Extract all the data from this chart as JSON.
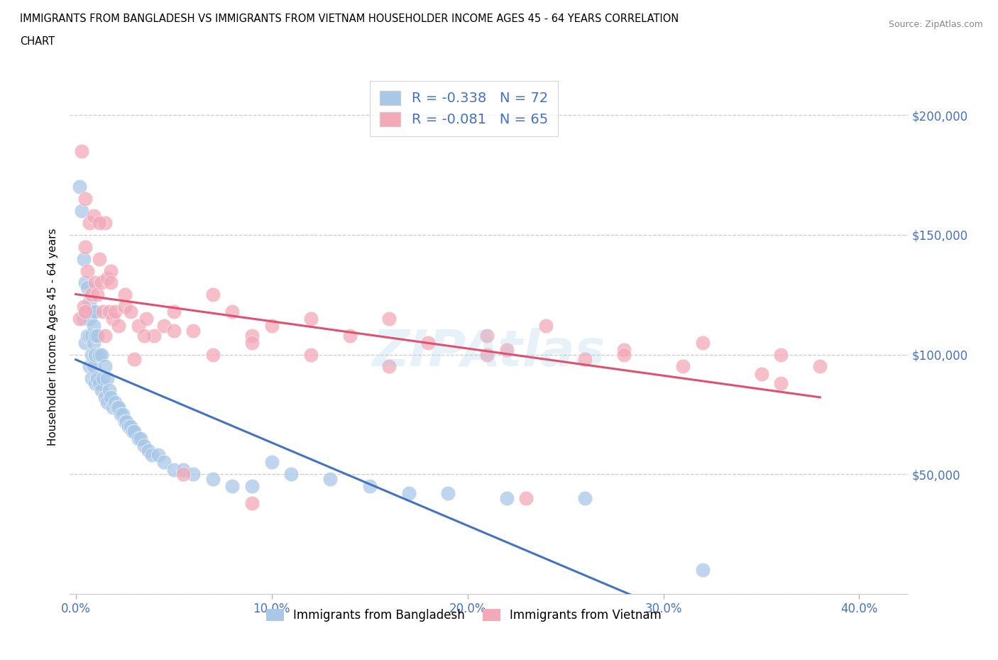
{
  "title_line1": "IMMIGRANTS FROM BANGLADESH VS IMMIGRANTS FROM VIETNAM HOUSEHOLDER INCOME AGES 45 - 64 YEARS CORRELATION",
  "title_line2": "CHART",
  "source": "Source: ZipAtlas.com",
  "ylabel": "Householder Income Ages 45 - 64 years",
  "xlabel_ticks": [
    "0.0%",
    "10.0%",
    "20.0%",
    "30.0%",
    "40.0%"
  ],
  "xlabel_vals": [
    0.0,
    0.1,
    0.2,
    0.3,
    0.4
  ],
  "ytick_vals": [
    0,
    50000,
    100000,
    150000,
    200000
  ],
  "ylim": [
    0,
    215000
  ],
  "xlim": [
    -0.003,
    0.425
  ],
  "right_ytick_labels": [
    "$200,000",
    "$150,000",
    "$100,000",
    "$50,000"
  ],
  "right_ytick_vals": [
    200000,
    150000,
    100000,
    50000
  ],
  "legend_r1": "-0.338",
  "legend_n1": "72",
  "legend_r2": "-0.081",
  "legend_n2": "65",
  "color_bangladesh": "#a8c8e8",
  "color_vietnam": "#f4a8b8",
  "line_color_bangladesh": "#4472c4",
  "line_color_vietnam": "#e05070",
  "bd_x": [
    0.002,
    0.003,
    0.004,
    0.004,
    0.005,
    0.005,
    0.005,
    0.006,
    0.006,
    0.006,
    0.007,
    0.007,
    0.007,
    0.007,
    0.008,
    0.008,
    0.008,
    0.008,
    0.009,
    0.009,
    0.009,
    0.01,
    0.01,
    0.01,
    0.01,
    0.011,
    0.011,
    0.012,
    0.012,
    0.013,
    0.013,
    0.014,
    0.015,
    0.015,
    0.016,
    0.016,
    0.017,
    0.018,
    0.019,
    0.02,
    0.021,
    0.022,
    0.023,
    0.024,
    0.025,
    0.026,
    0.027,
    0.028,
    0.029,
    0.03,
    0.032,
    0.033,
    0.035,
    0.037,
    0.039,
    0.042,
    0.045,
    0.05,
    0.055,
    0.06,
    0.07,
    0.08,
    0.09,
    0.1,
    0.11,
    0.13,
    0.15,
    0.17,
    0.19,
    0.22,
    0.26,
    0.32
  ],
  "bd_y": [
    170000,
    160000,
    140000,
    115000,
    130000,
    118000,
    105000,
    128000,
    118000,
    108000,
    122000,
    115000,
    108000,
    95000,
    118000,
    108000,
    100000,
    90000,
    112000,
    105000,
    95000,
    118000,
    108000,
    100000,
    88000,
    108000,
    90000,
    100000,
    88000,
    100000,
    85000,
    90000,
    95000,
    82000,
    90000,
    80000,
    85000,
    82000,
    78000,
    80000,
    78000,
    78000,
    75000,
    75000,
    72000,
    72000,
    70000,
    70000,
    68000,
    68000,
    65000,
    65000,
    62000,
    60000,
    58000,
    58000,
    55000,
    52000,
    52000,
    50000,
    48000,
    45000,
    45000,
    55000,
    50000,
    48000,
    45000,
    42000,
    42000,
    40000,
    40000,
    10000
  ],
  "vn_x": [
    0.002,
    0.003,
    0.004,
    0.005,
    0.005,
    0.006,
    0.007,
    0.008,
    0.009,
    0.01,
    0.011,
    0.012,
    0.013,
    0.014,
    0.015,
    0.016,
    0.017,
    0.018,
    0.019,
    0.02,
    0.022,
    0.025,
    0.028,
    0.032,
    0.036,
    0.04,
    0.045,
    0.05,
    0.06,
    0.07,
    0.08,
    0.09,
    0.1,
    0.12,
    0.14,
    0.16,
    0.18,
    0.21,
    0.24,
    0.28,
    0.32,
    0.36,
    0.38,
    0.012,
    0.018,
    0.025,
    0.035,
    0.05,
    0.07,
    0.09,
    0.12,
    0.16,
    0.21,
    0.28,
    0.35,
    0.22,
    0.26,
    0.31,
    0.36,
    0.23,
    0.005,
    0.015,
    0.03,
    0.055,
    0.09
  ],
  "vn_y": [
    115000,
    185000,
    120000,
    145000,
    118000,
    135000,
    155000,
    125000,
    158000,
    130000,
    125000,
    140000,
    130000,
    118000,
    155000,
    132000,
    118000,
    135000,
    115000,
    118000,
    112000,
    120000,
    118000,
    112000,
    115000,
    108000,
    112000,
    118000,
    110000,
    125000,
    118000,
    108000,
    112000,
    115000,
    108000,
    115000,
    105000,
    108000,
    112000,
    102000,
    105000,
    100000,
    95000,
    155000,
    130000,
    125000,
    108000,
    110000,
    100000,
    105000,
    100000,
    95000,
    100000,
    100000,
    92000,
    102000,
    98000,
    95000,
    88000,
    40000,
    165000,
    108000,
    98000,
    50000,
    38000
  ]
}
